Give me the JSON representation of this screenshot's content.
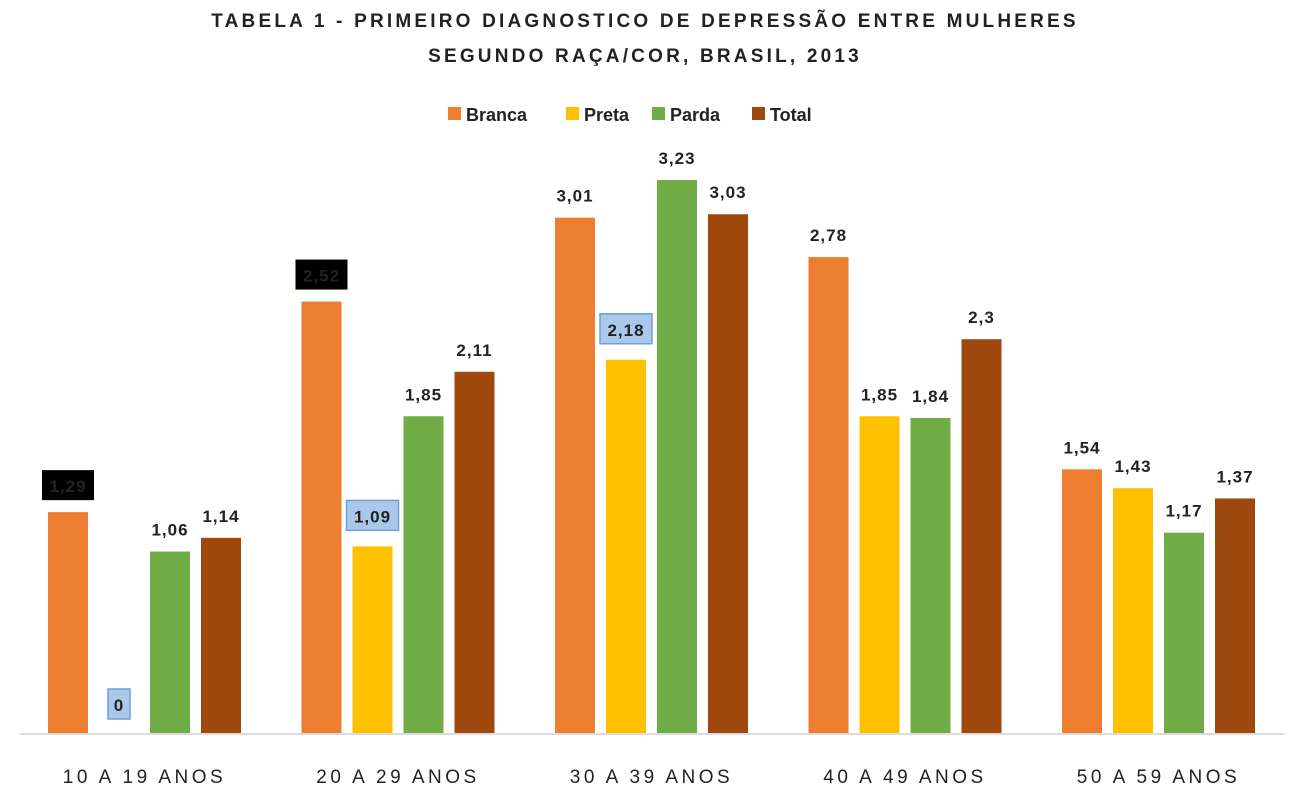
{
  "chart_data": {
    "type": "bar",
    "title": [
      "TABELA 1 - PRIMEIRO DIAGNOSTICO DE DEPRESSÃO ENTRE MULHERES",
      "SEGUNDO RAÇA/COR, BRASIL, 2013"
    ],
    "xlabel": "",
    "ylabel": "",
    "ylim": [
      0,
      3.23
    ],
    "grid": false,
    "legend_position": "top-center",
    "categories": [
      "10 A 19 ANOS",
      "20 A 29 ANOS",
      "30 A 39 ANOS",
      "40 A 49 ANOS",
      "50 A 59 ANOS"
    ],
    "series": [
      {
        "name": "Branca",
        "color": "#ED7D31",
        "values": [
          1.29,
          2.52,
          3.01,
          2.78,
          1.54
        ],
        "label_styles": [
          "black",
          "black",
          "plain",
          "plain",
          "plain"
        ]
      },
      {
        "name": "Preta",
        "color": "#FFC000",
        "values": [
          0,
          1.09,
          2.18,
          1.85,
          1.43
        ],
        "label_styles": [
          "blue",
          "blue",
          "blue",
          "plain",
          "plain"
        ]
      },
      {
        "name": "Parda",
        "color": "#70AD47",
        "values": [
          1.06,
          1.85,
          3.23,
          1.84,
          1.17
        ],
        "label_styles": [
          "plain",
          "plain",
          "plain",
          "plain",
          "plain"
        ]
      },
      {
        "name": "Total",
        "color": "#9E480E",
        "values": [
          1.14,
          2.11,
          3.03,
          2.3,
          1.37
        ],
        "label_styles": [
          "plain",
          "plain",
          "plain",
          "plain",
          "plain"
        ]
      }
    ],
    "decimal_separator": ","
  }
}
